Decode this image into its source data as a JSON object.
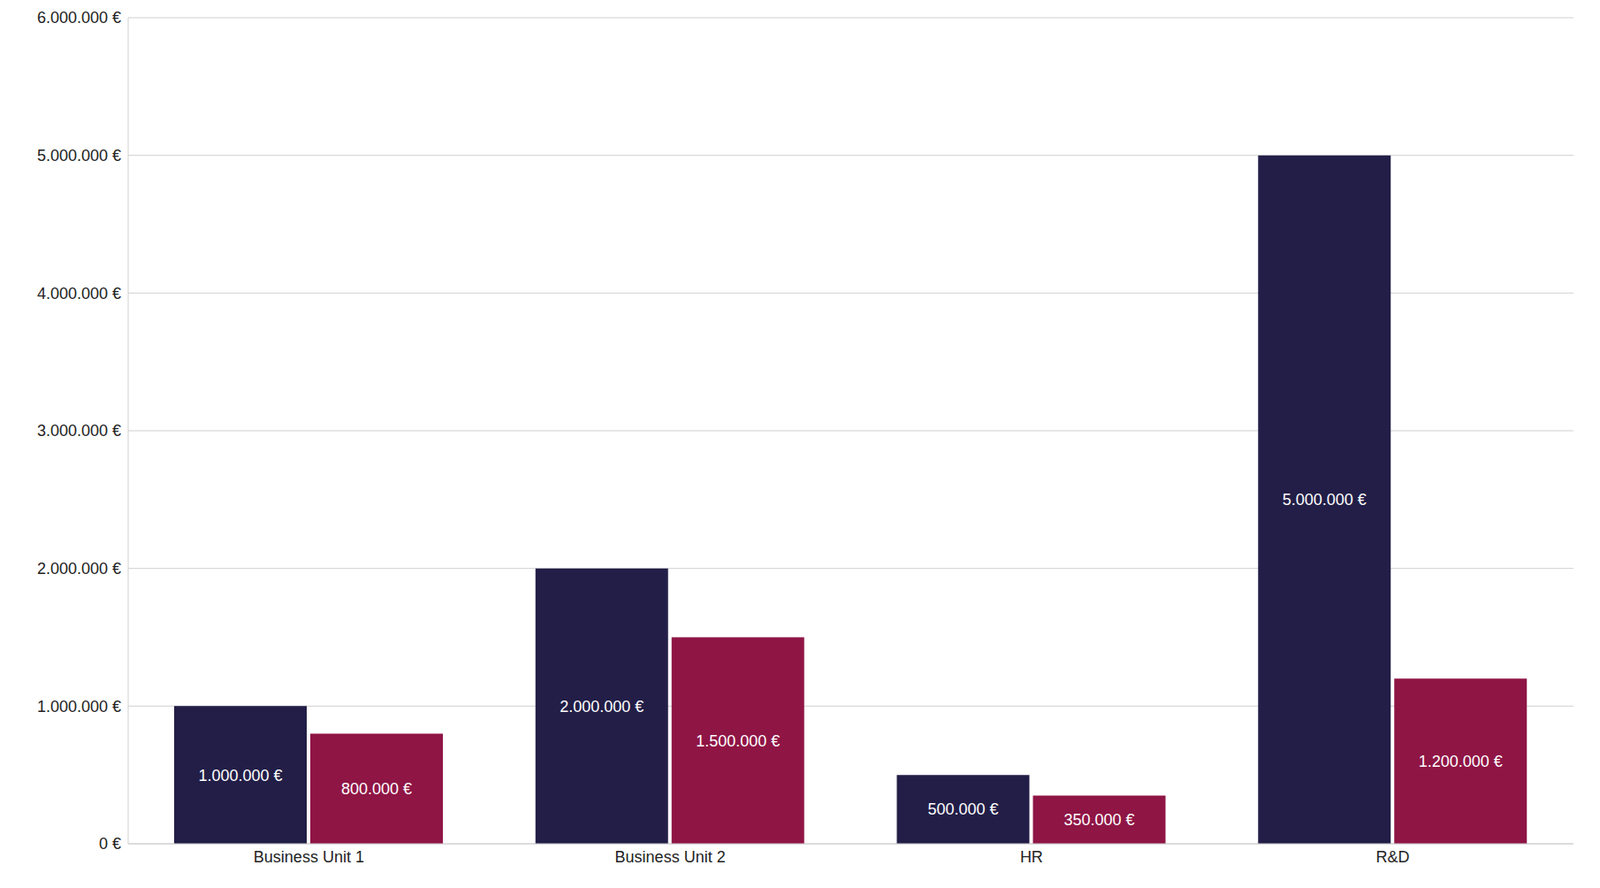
{
  "chart_data": {
    "type": "bar",
    "categories": [
      "Business Unit 1",
      "Business Unit 2",
      "HR",
      "R&D"
    ],
    "series": [
      {
        "color": "#221e47",
        "values": [
          1000000,
          2000000,
          500000,
          5000000
        ],
        "value_labels": [
          "1.000.000 €",
          "2.000.000 €",
          "500.000 €",
          "5.000.000 €"
        ]
      },
      {
        "color": "#8f1545",
        "values": [
          800000,
          1500000,
          350000,
          1200000
        ],
        "value_labels": [
          "800.000 €",
          "1.500.000 €",
          "350.000 €",
          "1.200.000 €"
        ]
      }
    ],
    "ylim": [
      0,
      6000000
    ],
    "yticks": [
      {
        "value": 0,
        "label": "0 €"
      },
      {
        "value": 1000000,
        "label": "1.000.000 €"
      },
      {
        "value": 2000000,
        "label": "2.000.000 €"
      },
      {
        "value": 3000000,
        "label": "3.000.000 €"
      },
      {
        "value": 4000000,
        "label": "4.000.000 €"
      },
      {
        "value": 5000000,
        "label": "5.000.000 €"
      },
      {
        "value": 6000000,
        "label": "6.000.000 €"
      }
    ],
    "grid": true,
    "data_labels": true
  }
}
